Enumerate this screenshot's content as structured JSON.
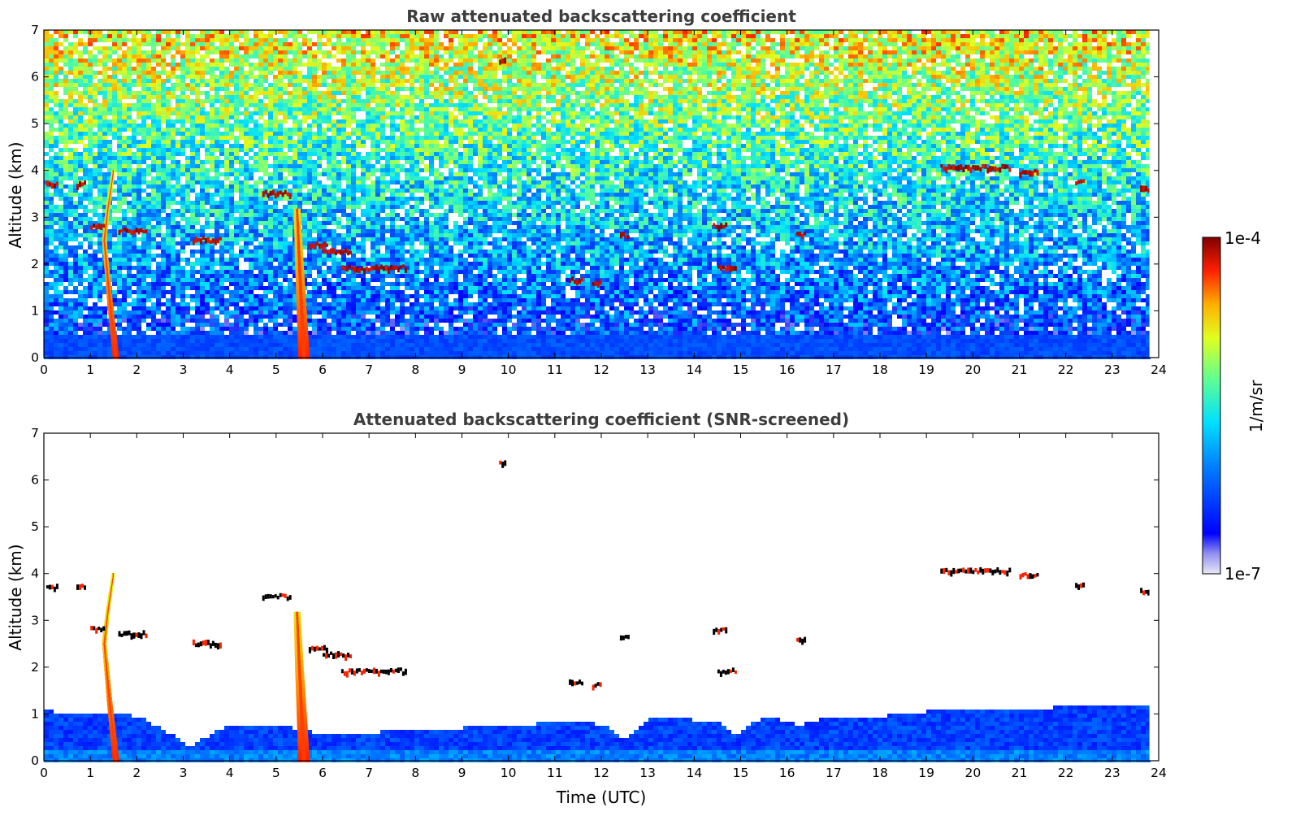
{
  "chart_data": [
    {
      "type": "heatmap",
      "title": "Raw attenuated backscattering coefficient",
      "xlabel": "",
      "ylabel": "Altitude (km)",
      "xlim": [
        0,
        24
      ],
      "ylim": [
        0,
        7
      ],
      "x_ticks": [
        "0",
        "1",
        "2",
        "3",
        "4",
        "5",
        "6",
        "7",
        "8",
        "9",
        "10",
        "11",
        "12",
        "13",
        "14",
        "15",
        "16",
        "17",
        "18",
        "19",
        "20",
        "21",
        "22",
        "23",
        "24"
      ],
      "y_ticks": [
        "0",
        "1",
        "2",
        "3",
        "4",
        "5",
        "6",
        "7"
      ],
      "data_end_time": 23.8,
      "features": [
        {
          "kind": "plume",
          "points": [
            [
              1.55,
              0
            ],
            [
              1.42,
              1.2
            ],
            [
              1.3,
              2.5
            ],
            [
              1.38,
              3.2
            ],
            [
              1.5,
              4.0
            ]
          ],
          "value": 0.85
        },
        {
          "kind": "plume",
          "points": [
            [
              5.6,
              0
            ],
            [
              5.55,
              1.0
            ],
            [
              5.5,
              2.0
            ],
            [
              5.45,
              3.2
            ]
          ],
          "value": 0.9
        },
        {
          "kind": "cloud",
          "t0": 0.05,
          "t1": 0.3,
          "alt": 3.7,
          "value": 1.0
        },
        {
          "kind": "cloud",
          "t0": 0.7,
          "t1": 0.9,
          "alt": 3.7,
          "value": 1.0
        },
        {
          "kind": "cloud",
          "t0": 1.0,
          "t1": 1.3,
          "alt": 2.8,
          "value": 1.0
        },
        {
          "kind": "cloud",
          "t0": 1.6,
          "t1": 2.2,
          "alt": 2.7,
          "value": 1.0
        },
        {
          "kind": "cloud",
          "t0": 3.2,
          "t1": 3.8,
          "alt": 2.5,
          "value": 1.0
        },
        {
          "kind": "cloud",
          "t0": 4.7,
          "t1": 5.3,
          "alt": 3.5,
          "value": 1.0
        },
        {
          "kind": "cloud",
          "t0": 5.7,
          "t1": 6.1,
          "alt": 2.4,
          "value": 1.0
        },
        {
          "kind": "cloud",
          "t0": 6.0,
          "t1": 6.6,
          "alt": 2.25,
          "value": 1.0
        },
        {
          "kind": "cloud",
          "t0": 6.4,
          "t1": 7.8,
          "alt": 1.9,
          "value": 1.0
        },
        {
          "kind": "cloud",
          "t0": 9.8,
          "t1": 9.95,
          "alt": 6.35,
          "value": 1.0
        },
        {
          "kind": "cloud",
          "t0": 11.3,
          "t1": 11.6,
          "alt": 1.65,
          "value": 1.0
        },
        {
          "kind": "cloud",
          "t0": 11.8,
          "t1": 12.0,
          "alt": 1.6,
          "value": 1.0
        },
        {
          "kind": "cloud",
          "t0": 12.4,
          "t1": 12.6,
          "alt": 2.6,
          "value": 1.0
        },
        {
          "kind": "cloud",
          "t0": 14.4,
          "t1": 14.7,
          "alt": 2.8,
          "value": 1.0
        },
        {
          "kind": "cloud",
          "t0": 14.5,
          "t1": 14.9,
          "alt": 1.9,
          "value": 1.0
        },
        {
          "kind": "cloud",
          "t0": 16.2,
          "t1": 16.4,
          "alt": 2.6,
          "value": 1.0
        },
        {
          "kind": "cloud",
          "t0": 19.3,
          "t1": 20.8,
          "alt": 4.05,
          "value": 1.0
        },
        {
          "kind": "cloud",
          "t0": 21.0,
          "t1": 21.4,
          "alt": 3.95,
          "value": 1.0
        },
        {
          "kind": "cloud",
          "t0": 22.2,
          "t1": 22.4,
          "alt": 3.75,
          "value": 1.0
        },
        {
          "kind": "cloud",
          "t0": 23.6,
          "t1": 23.8,
          "alt": 3.6,
          "value": 1.0
        }
      ]
    },
    {
      "type": "heatmap",
      "title": "Attenuated backscattering coefficient (SNR-screened)",
      "xlabel": "Time (UTC)",
      "ylabel": "Altitude (km)",
      "xlim": [
        0,
        24
      ],
      "ylim": [
        0,
        7
      ],
      "x_ticks": [
        "0",
        "1",
        "2",
        "3",
        "4",
        "5",
        "6",
        "7",
        "8",
        "9",
        "10",
        "11",
        "12",
        "13",
        "14",
        "15",
        "16",
        "17",
        "18",
        "19",
        "20",
        "21",
        "22",
        "23",
        "24"
      ],
      "y_ticks": [
        "0",
        "1",
        "2",
        "3",
        "4",
        "5",
        "6",
        "7"
      ],
      "data_end_time": 23.8,
      "boundary_layer_top_km": [
        [
          0,
          1.1
        ],
        [
          2.0,
          1.0
        ],
        [
          2.9,
          0.5
        ],
        [
          3.1,
          0.3
        ],
        [
          3.5,
          0.6
        ],
        [
          4.0,
          0.8
        ],
        [
          5.0,
          0.8
        ],
        [
          6.0,
          0.6
        ],
        [
          8.0,
          0.7
        ],
        [
          10.0,
          0.8
        ],
        [
          11.5,
          0.9
        ],
        [
          12.0,
          0.8
        ],
        [
          12.5,
          0.5
        ],
        [
          13.0,
          0.95
        ],
        [
          14.5,
          0.9
        ],
        [
          14.8,
          0.6
        ],
        [
          15.5,
          1.0
        ],
        [
          16.2,
          0.8
        ],
        [
          17.0,
          1.0
        ],
        [
          18.0,
          1.0
        ],
        [
          19.0,
          1.1
        ],
        [
          20.0,
          1.1
        ],
        [
          22.0,
          1.2
        ],
        [
          23.8,
          1.2
        ]
      ]
    }
  ],
  "colorbar": {
    "label": "1/m/sr",
    "max_label": "1e-4",
    "min_label": "1e-7",
    "colormap": "jet"
  }
}
